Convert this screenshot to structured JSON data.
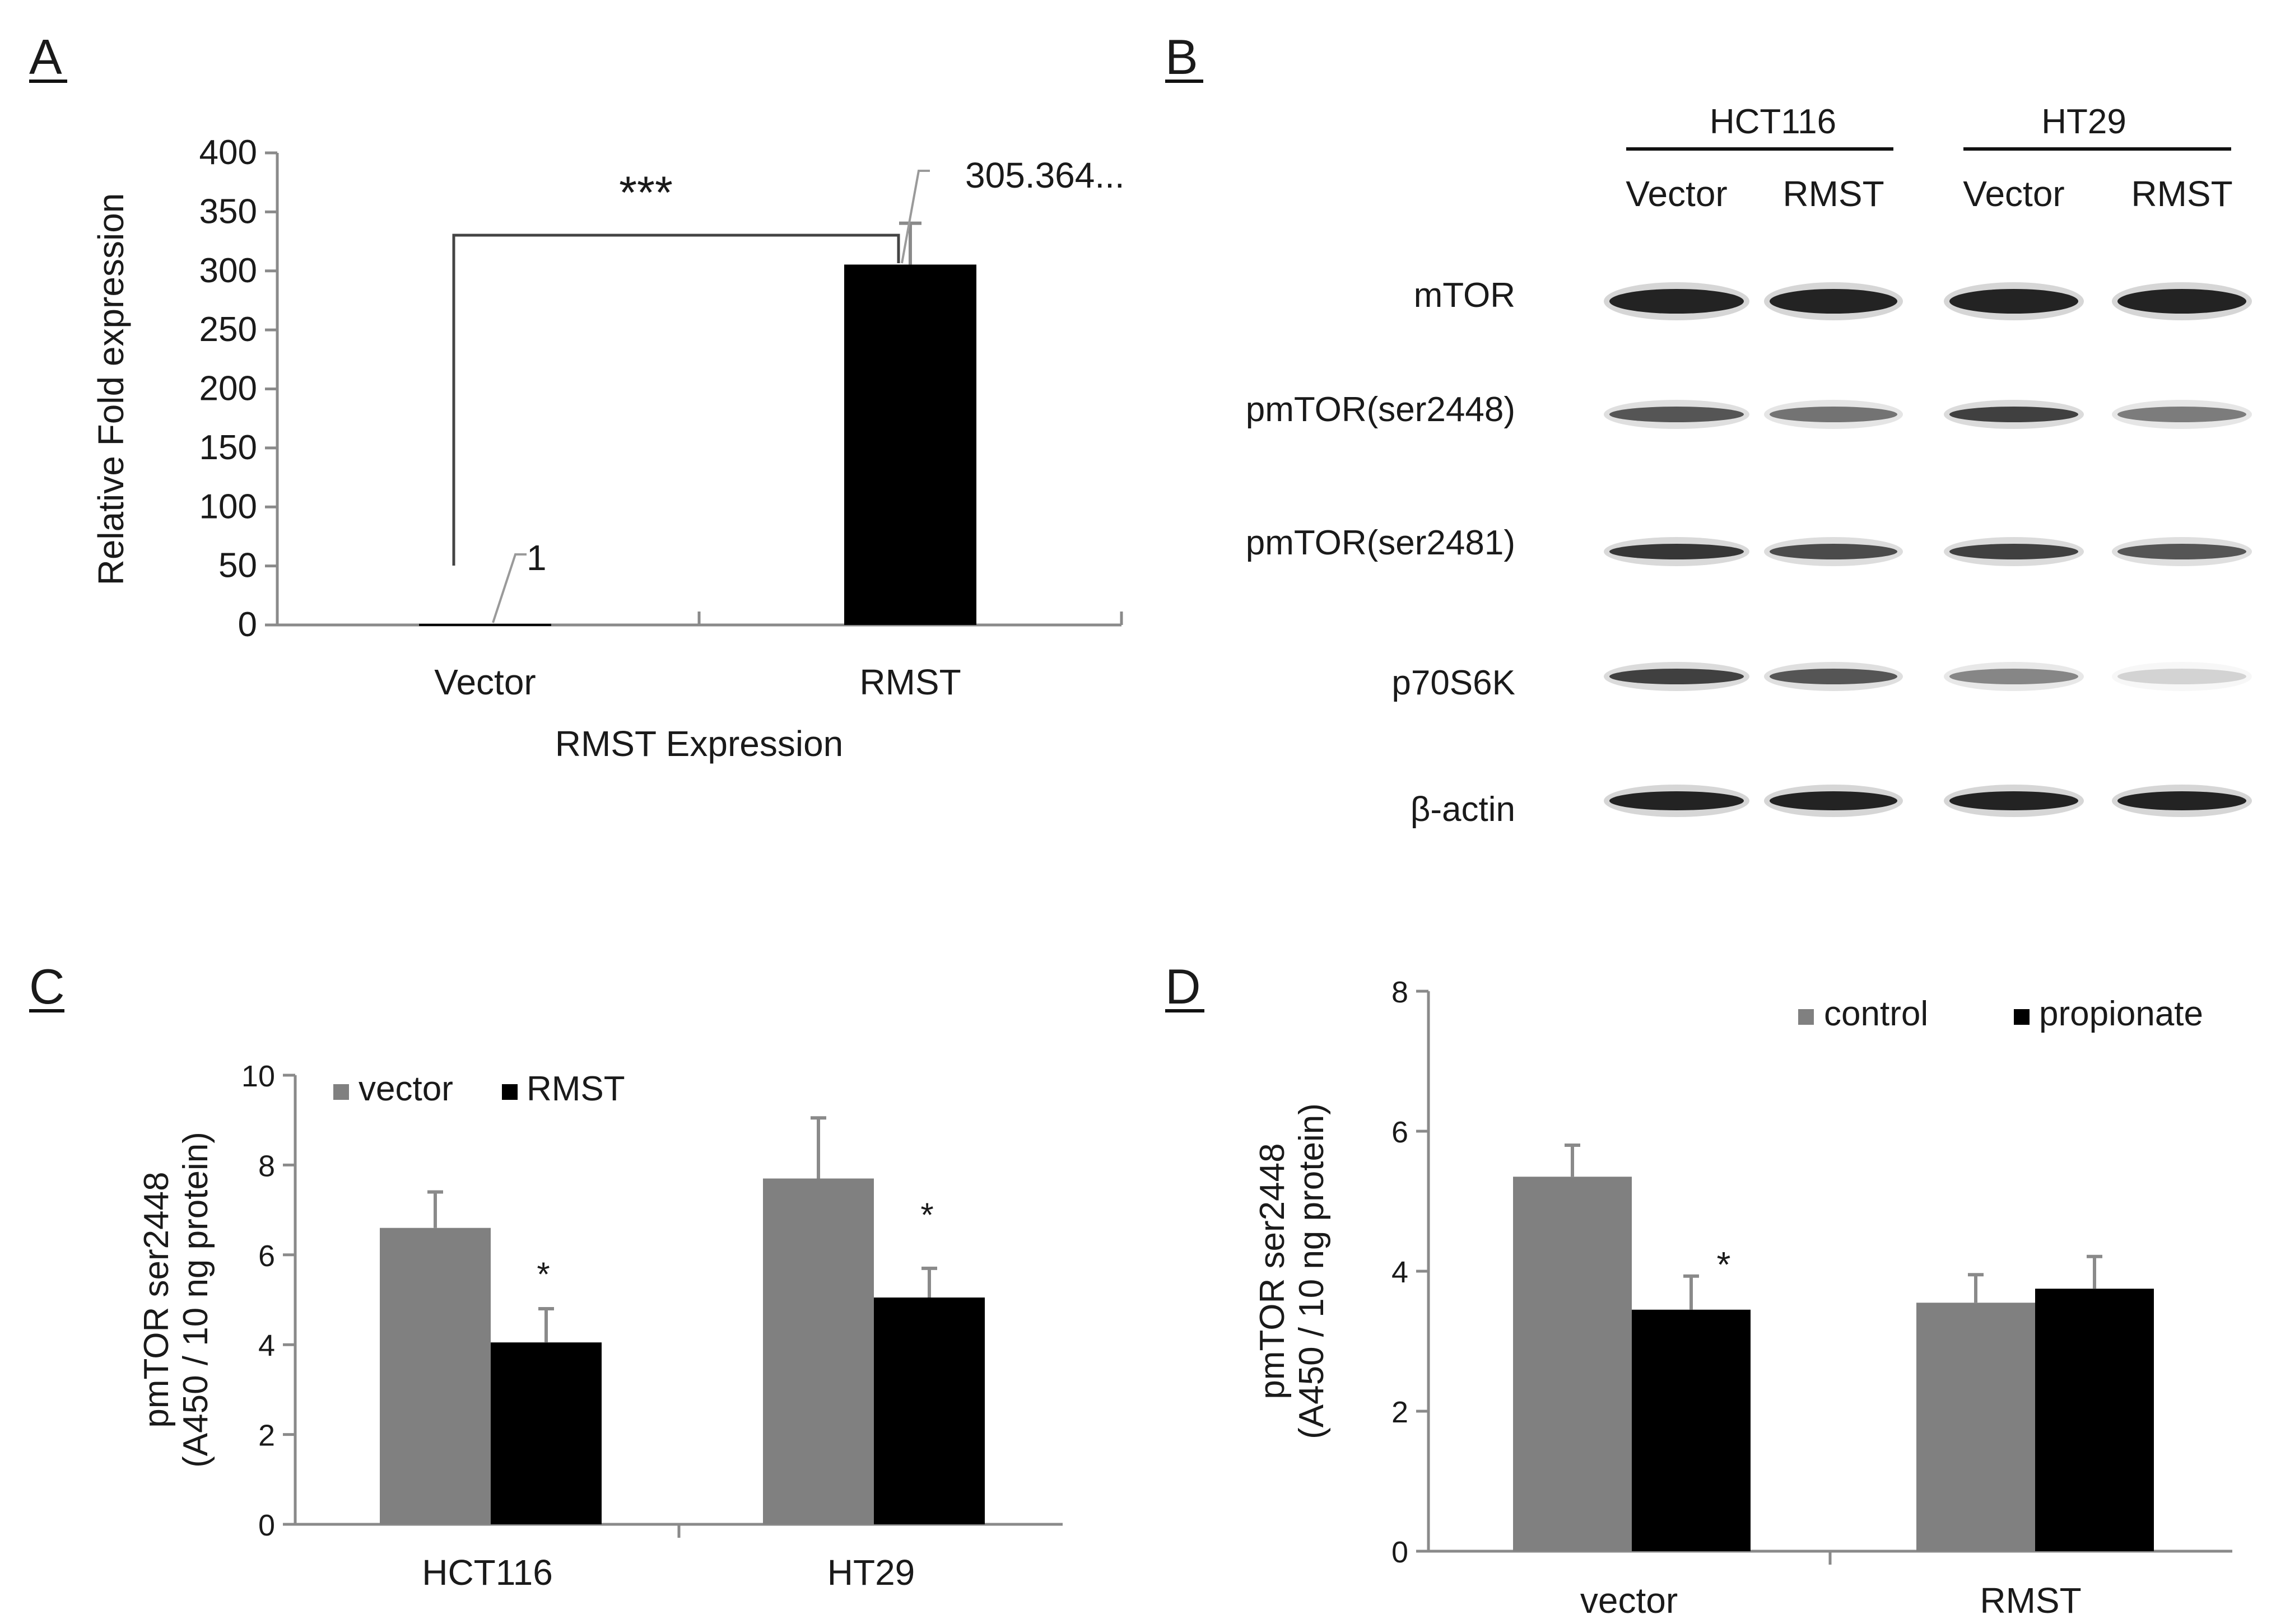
{
  "panels": {
    "A": "A",
    "B": "B",
    "C": "C",
    "D": "D"
  },
  "colors": {
    "black_bar": "#000000",
    "gray_bar": "#808080",
    "axis": "#8a8a8a",
    "band": "#1c1c1c"
  },
  "chart_data": [
    {
      "id": "A",
      "type": "bar",
      "categories": [
        "Vector",
        "RMST"
      ],
      "values": [
        1,
        305.364
      ],
      "errors": [
        0,
        35
      ],
      "data_labels": [
        "1",
        "305.364..."
      ],
      "significance": "***",
      "title": "",
      "xlabel": "RMST Expression",
      "ylabel": "Relative Fold expression",
      "ylim": [
        0,
        400
      ],
      "yticks": [
        0,
        50,
        100,
        150,
        200,
        250,
        300,
        350,
        400
      ]
    },
    {
      "id": "C",
      "type": "bar",
      "categories": [
        "HCT116",
        "HT29"
      ],
      "series": [
        {
          "name": "vector",
          "color": "#808080",
          "values": [
            6.6,
            7.7
          ],
          "errors": [
            0.8,
            1.35
          ]
        },
        {
          "name": "RMST",
          "color": "#000000",
          "values": [
            4.05,
            5.05
          ],
          "errors": [
            0.75,
            0.65
          ]
        }
      ],
      "annotations": [
        "*",
        "*"
      ],
      "title": "",
      "xlabel": "",
      "ylabel": [
        "pmTOR  ser2448",
        "(A450 / 10 ng protein)"
      ],
      "ylim": [
        0,
        10
      ],
      "yticks": [
        0,
        2,
        4,
        6,
        8,
        10
      ],
      "legend_position": "top-left"
    },
    {
      "id": "D",
      "type": "bar",
      "categories": [
        "vector",
        "RMST"
      ],
      "series": [
        {
          "name": "control",
          "color": "#808080",
          "values": [
            5.35,
            3.55
          ],
          "errors": [
            0.45,
            0.4
          ]
        },
        {
          "name": "propionate",
          "color": "#000000",
          "values": [
            3.45,
            3.75
          ],
          "errors": [
            0.48,
            0.46
          ]
        }
      ],
      "annotations": [
        "*"
      ],
      "title": "",
      "xlabel": "",
      "ylabel": [
        "pmTOR  ser2448",
        "(A450 / 10 ng protein)"
      ],
      "ylim": [
        0,
        8
      ],
      "yticks": [
        0,
        2,
        4,
        6,
        8
      ],
      "legend_position": "top-right"
    }
  ],
  "western_blot": {
    "groups": [
      {
        "name": "HCT116",
        "lanes": [
          "Vector",
          "RMST"
        ]
      },
      {
        "name": "HT29",
        "lanes": [
          "Vector",
          "RMST"
        ]
      }
    ],
    "rows": [
      {
        "label": "mTOR",
        "intensity": [
          1.0,
          1.0,
          1.0,
          1.0
        ]
      },
      {
        "label": "pmTOR(ser2448)",
        "intensity": [
          0.75,
          0.6,
          0.85,
          0.55
        ]
      },
      {
        "label": "pmTOR(ser2481)",
        "intensity": [
          0.9,
          0.8,
          0.85,
          0.75
        ]
      },
      {
        "label": "p70S6K",
        "intensity": [
          0.85,
          0.75,
          0.5,
          0.12
        ]
      },
      {
        "label": "β-actin",
        "intensity": [
          1.0,
          1.0,
          1.0,
          1.0
        ]
      }
    ]
  }
}
